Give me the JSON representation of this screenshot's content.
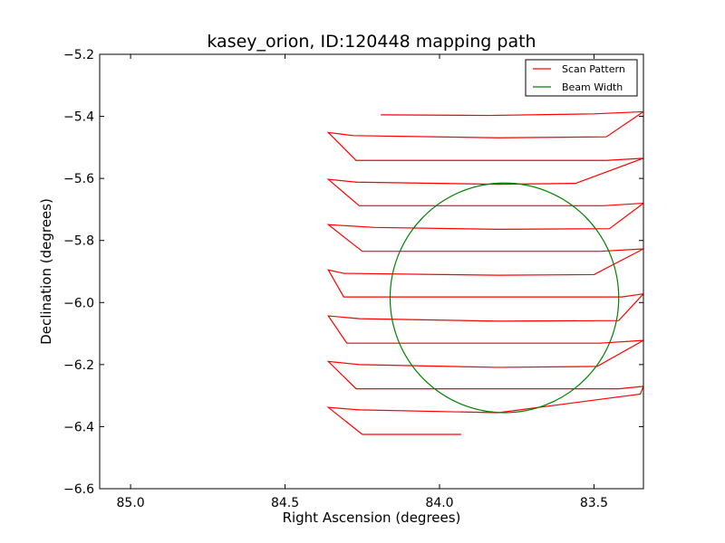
{
  "chart_data": {
    "type": "line",
    "title": "kasey_orion, ID:120448 mapping path",
    "xlabel": "Right Ascension (degrees)",
    "ylabel": "Declination (degrees)",
    "xlim": [
      85.1,
      83.34
    ],
    "ylim": [
      -6.6,
      -5.2
    ],
    "x_inverted": true,
    "xticks": [
      85.0,
      84.5,
      84.0,
      83.5
    ],
    "xtick_labels": [
      "85.0",
      "84.5",
      "84.0",
      "83.5"
    ],
    "yticks": [
      -5.2,
      -5.4,
      -5.6,
      -5.8,
      -6.0,
      -6.2,
      -6.4,
      -6.6
    ],
    "ytick_labels": [
      "−5.2",
      "−5.4",
      "−5.6",
      "−5.8",
      "−6.0",
      "−6.2",
      "−6.4",
      "−6.6"
    ],
    "grid": false,
    "legend_position": "top-right",
    "series": [
      {
        "name": "Scan Pattern",
        "kind": "line",
        "color": "#ff0000",
        "x": [
          84.19,
          83.84,
          83.5,
          83.34,
          83.46,
          83.81,
          84.28,
          84.36,
          84.27,
          84.01,
          83.46,
          83.34,
          83.56,
          83.81,
          84.27,
          84.36,
          84.26,
          83.96,
          83.47,
          83.34,
          83.45,
          83.81,
          84.21,
          84.36,
          84.25,
          84.01,
          83.48,
          83.34,
          83.5,
          83.81,
          84.31,
          84.36,
          84.31,
          83.96,
          83.41,
          83.34,
          83.42,
          83.81,
          84.26,
          84.36,
          84.3,
          84.01,
          83.48,
          83.34,
          83.49,
          83.81,
          84.26,
          84.36,
          84.27,
          83.96,
          83.42,
          83.34,
          83.35,
          83.81,
          84.26,
          84.36,
          84.25,
          83.93
        ],
        "y": [
          -5.395,
          -5.397,
          -5.392,
          -5.385,
          -5.466,
          -5.469,
          -5.462,
          -5.452,
          -5.542,
          -5.542,
          -5.542,
          -5.535,
          -5.616,
          -5.619,
          -5.612,
          -5.603,
          -5.688,
          -5.688,
          -5.688,
          -5.68,
          -5.762,
          -5.764,
          -5.758,
          -5.749,
          -5.835,
          -5.835,
          -5.835,
          -5.827,
          -5.91,
          -5.912,
          -5.906,
          -5.895,
          -5.982,
          -5.982,
          -5.982,
          -5.972,
          -6.058,
          -6.06,
          -6.052,
          -6.043,
          -6.131,
          -6.131,
          -6.131,
          -6.122,
          -6.206,
          -6.209,
          -6.2,
          -6.19,
          -6.278,
          -6.278,
          -6.278,
          -6.27,
          -6.295,
          -6.355,
          -6.346,
          -6.338,
          -6.425,
          -6.425
        ]
      },
      {
        "name": "Beam Width",
        "kind": "circle",
        "color": "#008000",
        "center": [
          83.79,
          -5.985
        ],
        "radius_y": 0.37,
        "radius_x": 0.37
      }
    ]
  }
}
